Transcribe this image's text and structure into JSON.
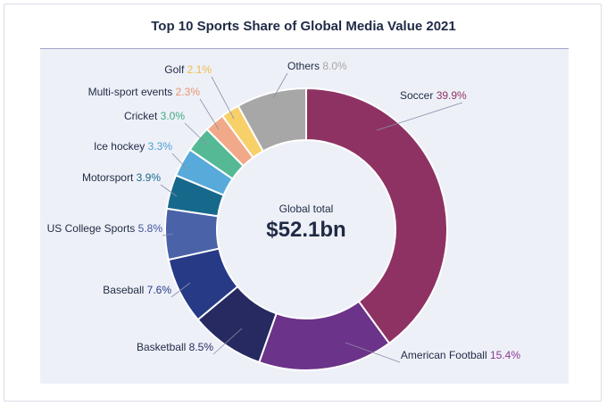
{
  "chart_data": {
    "type": "pie",
    "title": "Top 10 Sports Share of Global Media Value 2021",
    "center_caption": "Global total",
    "center_value": "$52.1bn",
    "slices": [
      {
        "name": "Soccer",
        "value": 39.9,
        "value_label": "39.9%",
        "color": "#8e3263"
      },
      {
        "name": "American Football",
        "value": 15.4,
        "value_label": "15.4%",
        "color": "#6b3389"
      },
      {
        "name": "Basketball",
        "value": 8.5,
        "value_label": "8.5%",
        "color": "#262a60"
      },
      {
        "name": "Baseball",
        "value": 7.6,
        "value_label": "7.6%",
        "color": "#263a86"
      },
      {
        "name": "US College Sports",
        "value": 5.8,
        "value_label": "5.8%",
        "color": "#4a62a8"
      },
      {
        "name": "Motorsport",
        "value": 3.9,
        "value_label": "3.9%",
        "color": "#17698c"
      },
      {
        "name": "Ice hockey",
        "value": 3.3,
        "value_label": "3.3%",
        "color": "#58aadb"
      },
      {
        "name": "Cricket",
        "value": 3.0,
        "value_label": "3.0%",
        "color": "#55b996"
      },
      {
        "name": "Multi-sport events",
        "value": 2.3,
        "value_label": "2.3%",
        "color": "#f2a98a"
      },
      {
        "name": "Golf",
        "value": 2.1,
        "value_label": "2.1%",
        "color": "#f7d06a"
      },
      {
        "name": "Others",
        "value": 8.0,
        "value_label": "8.0%",
        "color": "#a7a7a7"
      }
    ],
    "label_text_color": "#1f2a44",
    "value_colors": {
      "Soccer": "#8e3263",
      "American Football": "#8a3a8c",
      "Basketball": "#262a60",
      "Baseball": "#263a86",
      "US College Sports": "#3f56a0",
      "Motorsport": "#17698c",
      "Ice hockey": "#4b9fd0",
      "Cricket": "#3fa984",
      "Multi-sport events": "#e9936d",
      "Golf": "#efbe45",
      "Others": "#a7a7a7"
    }
  }
}
